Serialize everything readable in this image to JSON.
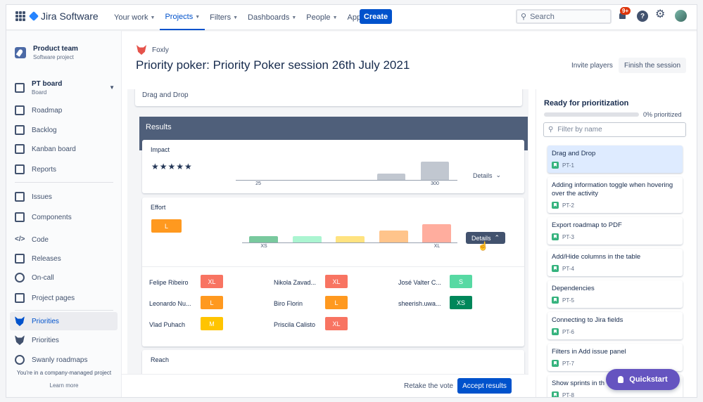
{
  "nav": {
    "logo": "Jira Software",
    "items": [
      {
        "label": "Your work",
        "chevron": true
      },
      {
        "label": "Projects",
        "chevron": true,
        "active": true
      },
      {
        "label": "Filters",
        "chevron": true
      },
      {
        "label": "Dashboards",
        "chevron": true
      },
      {
        "label": "People",
        "chevron": true
      },
      {
        "label": "Apps",
        "chevron": true
      }
    ],
    "create": "Create",
    "search_placeholder": "Search",
    "notification_badge": "9+"
  },
  "sidebar": {
    "project_name": "Product team",
    "project_type": "Software project",
    "board_name": "PT board",
    "board_type": "Board",
    "items": [
      {
        "label": "Roadmap",
        "icon": "roadmap-icon"
      },
      {
        "label": "Backlog",
        "icon": "backlog-icon"
      },
      {
        "label": "Kanban board",
        "icon": "kanban-icon"
      },
      {
        "label": "Reports",
        "icon": "reports-icon"
      },
      {
        "label": "Issues",
        "icon": "issues-icon"
      },
      {
        "label": "Components",
        "icon": "components-icon"
      },
      {
        "label": "Code",
        "icon": "code-icon"
      },
      {
        "label": "Releases",
        "icon": "releases-icon"
      },
      {
        "label": "On-call",
        "icon": "on-call-icon"
      },
      {
        "label": "Project pages",
        "icon": "project-pages-icon"
      },
      {
        "label": "Priorities",
        "icon": "fox-icon",
        "selected": true
      },
      {
        "label": "Priorities",
        "icon": "fox-icon"
      },
      {
        "label": "Swanly roadmaps",
        "icon": "swan-icon"
      }
    ],
    "footer": "You're in a company-managed project",
    "learn_more": "Learn more"
  },
  "header": {
    "app": "Foxly",
    "title": "Priority poker: Priority Poker session 26th July 2021",
    "invite": "Invite players",
    "finish": "Finish the session"
  },
  "content": {
    "previous_card": "Drag and Drop",
    "results_label": "Results",
    "impact": {
      "label": "Impact",
      "stars": "★★★★★",
      "rating": 5,
      "ticks": [
        "25",
        "300"
      ],
      "details": "Details"
    },
    "effort": {
      "label": "Effort",
      "result": "L",
      "ticks": [
        "XS",
        "XL"
      ],
      "details": "Details",
      "votes": [
        {
          "name": "Felipe Ribeiro",
          "value": "XL",
          "color": "#f87462"
        },
        {
          "name": "Nikola Zavad...",
          "value": "XL",
          "color": "#f87462"
        },
        {
          "name": "José Valter C...",
          "value": "S",
          "color": "#57d9a3"
        },
        {
          "name": "Leonardo Nu...",
          "value": "L",
          "color": "#ff991f"
        },
        {
          "name": "Biro Florin",
          "value": "L",
          "color": "#ff991f"
        },
        {
          "name": "sheerish.uwa...",
          "value": "XS",
          "color": "#00875a"
        },
        {
          "name": "Vlad Puhach",
          "value": "M",
          "color": "#ffc400"
        },
        {
          "name": "Priscila Calisto",
          "value": "XL",
          "color": "#f87462"
        }
      ]
    },
    "reach": {
      "label": "Reach"
    },
    "retake": "Retake the vote",
    "accept": "Accept results"
  },
  "right_panel": {
    "title": "Ready for prioritization",
    "progress": 0,
    "progress_label": "0% prioritized",
    "filter_placeholder": "Filter by name",
    "issues": [
      {
        "title": "Drag and Drop",
        "key": "PT-1",
        "active": true
      },
      {
        "title": "Adding information toggle when hovering over the activity",
        "key": "PT-2"
      },
      {
        "title": "Export roadmap to PDF",
        "key": "PT-3"
      },
      {
        "title": "Add/Hide columns in the table",
        "key": "PT-4"
      },
      {
        "title": "Dependencies",
        "key": "PT-5"
      },
      {
        "title": "Connecting to Jira fields",
        "key": "PT-6"
      },
      {
        "title": "Filters in Add issue panel",
        "key": "PT-7"
      },
      {
        "title": "Show sprints in th",
        "key": "PT-8"
      }
    ]
  },
  "quickstart": "Quickstart",
  "colors": {
    "primary": "#0052cc",
    "results_bar": "#4f5f7a",
    "quickstart": "#6554c0"
  }
}
